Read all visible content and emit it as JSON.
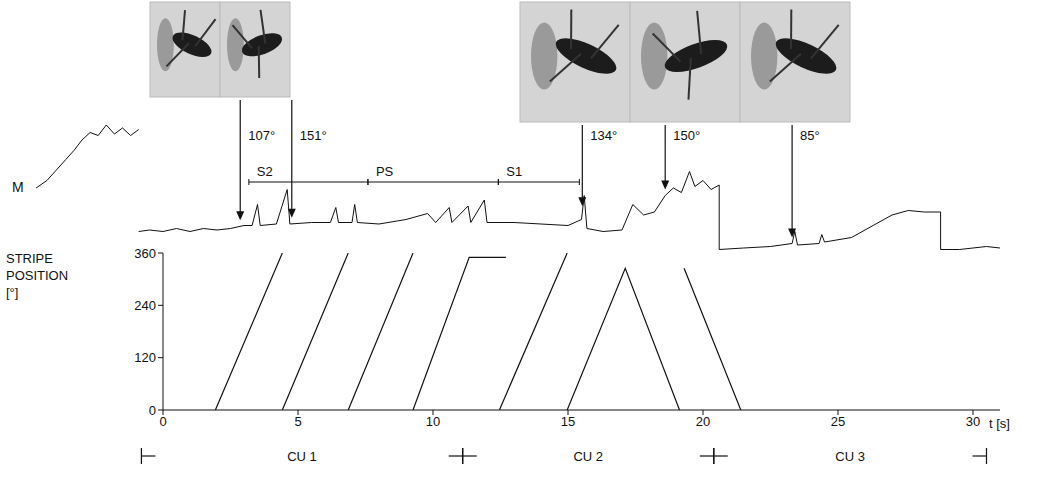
{
  "chart_data": [
    {
      "type": "line",
      "y_label": "M",
      "x": [
        -4.7,
        -4.3,
        -4.0,
        -3.6,
        -3.3,
        -3.0,
        -2.7,
        -2.4,
        -2.1,
        -1.8,
        -1.5,
        -1.2,
        -0.9,
        -0.9,
        -0.9,
        -0.5,
        0,
        0.5,
        1,
        1.5,
        2,
        2.5,
        3,
        3.3,
        3.5,
        3.6,
        4.2,
        4.6,
        4.7,
        5.5,
        6.2,
        6.4,
        6.5,
        7.0,
        7.1,
        7.2,
        8,
        9,
        9.8,
        10.1,
        10.6,
        10.7,
        11.3,
        11.4,
        11.9,
        12.0,
        13,
        14,
        15,
        15.5,
        15.6,
        15.7,
        16.3,
        17.0,
        17.4,
        17.8,
        18.2,
        18.6,
        18.9,
        19.2,
        19.5,
        19.7,
        20.0,
        20.3,
        20.6,
        20.6,
        21.5,
        22.5,
        23.3,
        23.4,
        23.5,
        24.3,
        24.4,
        24.5,
        25.5,
        26.3,
        27.0,
        27.6,
        28.2,
        28.8,
        28.8,
        29.5,
        30.5,
        31
      ],
      "values": [
        48,
        53,
        59,
        67,
        73,
        80,
        85,
        83,
        90,
        84,
        88,
        83,
        87,
        null,
        19,
        20,
        19,
        21,
        19,
        21,
        20,
        21,
        23,
        23,
        37,
        23,
        24,
        47,
        24,
        25,
        25,
        35,
        25,
        25,
        37,
        25,
        24,
        27,
        31,
        25,
        35,
        25,
        36,
        25,
        40,
        25,
        25,
        24,
        23,
        27,
        43,
        21,
        19,
        20,
        37,
        30,
        32,
        43,
        48,
        45,
        59,
        49,
        53,
        47,
        50,
        7,
        8,
        9,
        11,
        19,
        10,
        11,
        17,
        12,
        15,
        23,
        30,
        33,
        32,
        32,
        7,
        7,
        9,
        8
      ],
      "xlim": [
        -5,
        31
      ],
      "ylim": [
        0,
        100
      ],
      "tick_labels": false,
      "color": "#111111",
      "annotations": [
        {
          "text": "107°",
          "x": 2.86
        },
        {
          "text": "151°",
          "x": 4.77
        },
        {
          "text": "134°",
          "x": 15.53
        },
        {
          "text": "150°",
          "x": 18.6
        },
        {
          "text": "85°",
          "x": 23.3
        }
      ],
      "segments": [
        {
          "label": "S2",
          "start": 3.18,
          "end": 7.59
        },
        {
          "label": "PS",
          "start": 7.59,
          "end": 12.42
        },
        {
          "label": "S1",
          "start": 12.42,
          "end": 15.42
        }
      ]
    },
    {
      "type": "line",
      "y_label": "STRIPE POSITION [°]",
      "x_label": "t [s]",
      "x": [
        1.94,
        4.42,
        4.42,
        4.42,
        6.86,
        6.86,
        6.86,
        9.26,
        9.26,
        9.26,
        11.34,
        12.7,
        12.7,
        12.46,
        14.97,
        14.97,
        14.97,
        17.12,
        19.13,
        19.13,
        19.3,
        21.4
      ],
      "values": [
        0,
        360,
        null,
        0,
        360,
        null,
        0,
        360,
        null,
        0,
        350,
        350,
        null,
        0,
        360,
        null,
        0,
        325,
        0,
        null,
        325,
        0
      ],
      "xlim": [
        0,
        31
      ],
      "ylim": [
        0,
        360
      ],
      "xticks": [
        0,
        5,
        10,
        15,
        20,
        25,
        30
      ],
      "yticks": [
        0,
        120,
        240,
        360
      ],
      "color": "#111111",
      "units": [
        {
          "label": "CU 1",
          "start": -0.8,
          "end": 11.1
        },
        {
          "label": "CU 2",
          "start": 11.1,
          "end": 20.4
        },
        {
          "label": "CU 3",
          "start": 20.4,
          "end": 30.5
        }
      ]
    }
  ]
}
